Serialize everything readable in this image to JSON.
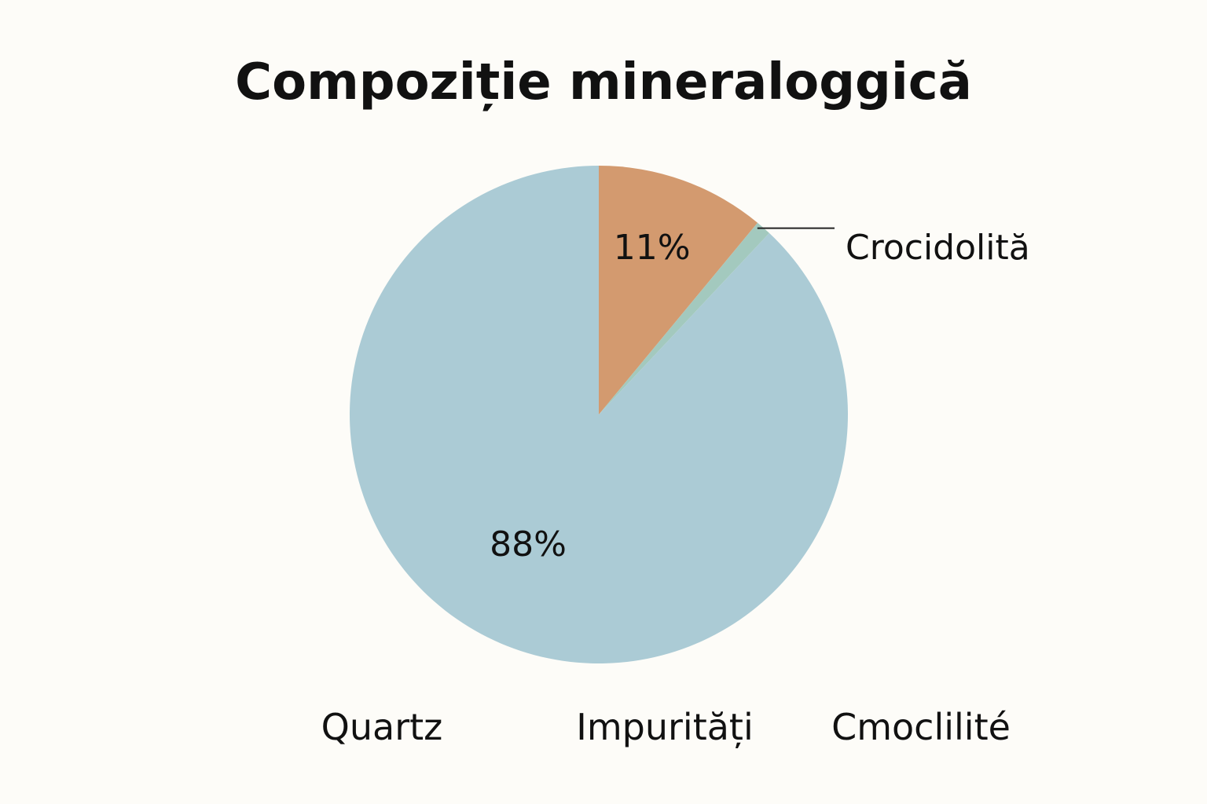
{
  "chart_data": {
    "type": "pie",
    "title": "Compoziție mineraloggică",
    "categories": [
      "Quartz",
      "Crocidolită",
      "Impurități"
    ],
    "values": [
      88,
      11,
      1
    ],
    "value_labels": [
      "88%",
      "11%",
      ""
    ],
    "colors": [
      "#abcbd5",
      "#d39a6f",
      "#a3c9be"
    ],
    "callout_label": "Crocidolită",
    "bottom_labels": [
      "Quartz",
      "Impurități",
      "Cmoclilité"
    ],
    "start_angle_deg": 0,
    "direction": "clockwise"
  }
}
